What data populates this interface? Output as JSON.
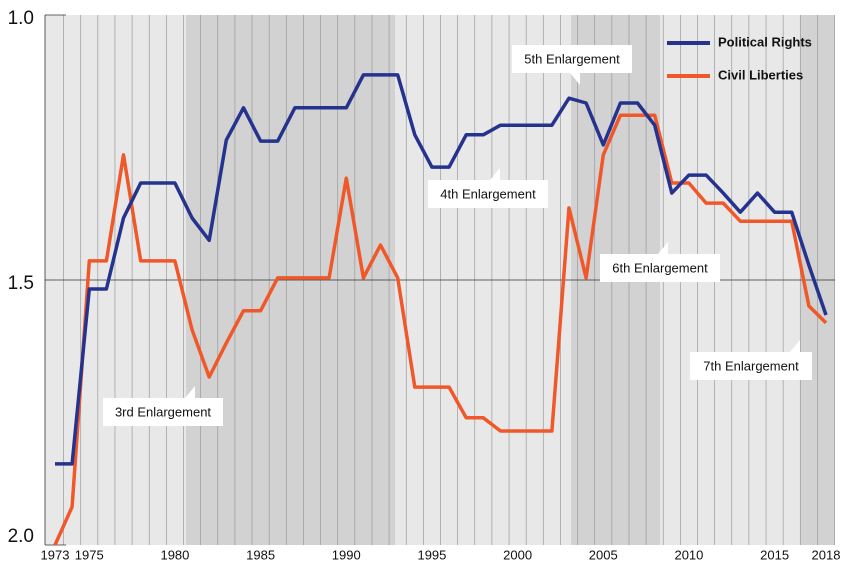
{
  "chart_data": {
    "type": "line",
    "x": [
      1973,
      1974,
      1975,
      1976,
      1977,
      1978,
      1979,
      1980,
      1981,
      1982,
      1983,
      1984,
      1985,
      1986,
      1987,
      1988,
      1989,
      1990,
      1991,
      1992,
      1993,
      1994,
      1995,
      1996,
      1997,
      1998,
      1999,
      2000,
      2001,
      2002,
      2003,
      2004,
      2005,
      2006,
      2007,
      2008,
      2009,
      2010,
      2011,
      2012,
      2013,
      2014,
      2015,
      2016,
      2017,
      2018
    ],
    "series": [
      {
        "name": "Political Rights",
        "color": "#25338f",
        "values": [
          1.847,
          1.847,
          1.517,
          1.517,
          1.383,
          1.317,
          1.317,
          1.317,
          1.383,
          1.425,
          1.236,
          1.175,
          1.238,
          1.238,
          1.175,
          1.175,
          1.175,
          1.175,
          1.113,
          1.113,
          1.113,
          1.226,
          1.287,
          1.287,
          1.226,
          1.226,
          1.208,
          1.208,
          1.208,
          1.208,
          1.157,
          1.166,
          1.245,
          1.166,
          1.166,
          1.208,
          1.336,
          1.302,
          1.302,
          1.336,
          1.372,
          1.336,
          1.372,
          1.372,
          1.472,
          1.566
        ]
      },
      {
        "name": "Civil Liberties",
        "color": "#f0582a",
        "values": [
          2.0,
          1.928,
          1.464,
          1.464,
          1.264,
          1.464,
          1.464,
          1.464,
          1.594,
          1.683,
          1.619,
          1.558,
          1.558,
          1.496,
          1.496,
          1.496,
          1.496,
          1.308,
          1.496,
          1.434,
          1.496,
          1.702,
          1.702,
          1.702,
          1.76,
          1.76,
          1.785,
          1.785,
          1.785,
          1.785,
          1.364,
          1.496,
          1.264,
          1.189,
          1.189,
          1.189,
          1.317,
          1.317,
          1.355,
          1.355,
          1.389,
          1.389,
          1.389,
          1.389,
          1.549,
          1.581
        ]
      }
    ],
    "xlim": [
      1973,
      2018
    ],
    "xticks": [
      1973,
      1975,
      1980,
      1985,
      1990,
      1995,
      2000,
      2005,
      2010,
      2015,
      2018
    ],
    "ylim": [
      1,
      2
    ],
    "y_inverted": true,
    "yticks": [
      {
        "value": 1,
        "label": "1.0"
      },
      {
        "value": 1.5,
        "label": "1.5"
      },
      {
        "value": 2,
        "label": "2.0"
      }
    ],
    "legend": "top-right",
    "annotations": [
      "5th Enlargement",
      "4th Enlargement",
      "6th Enlargement",
      "3rd Enlargement",
      "7th Enlargement"
    ]
  }
}
